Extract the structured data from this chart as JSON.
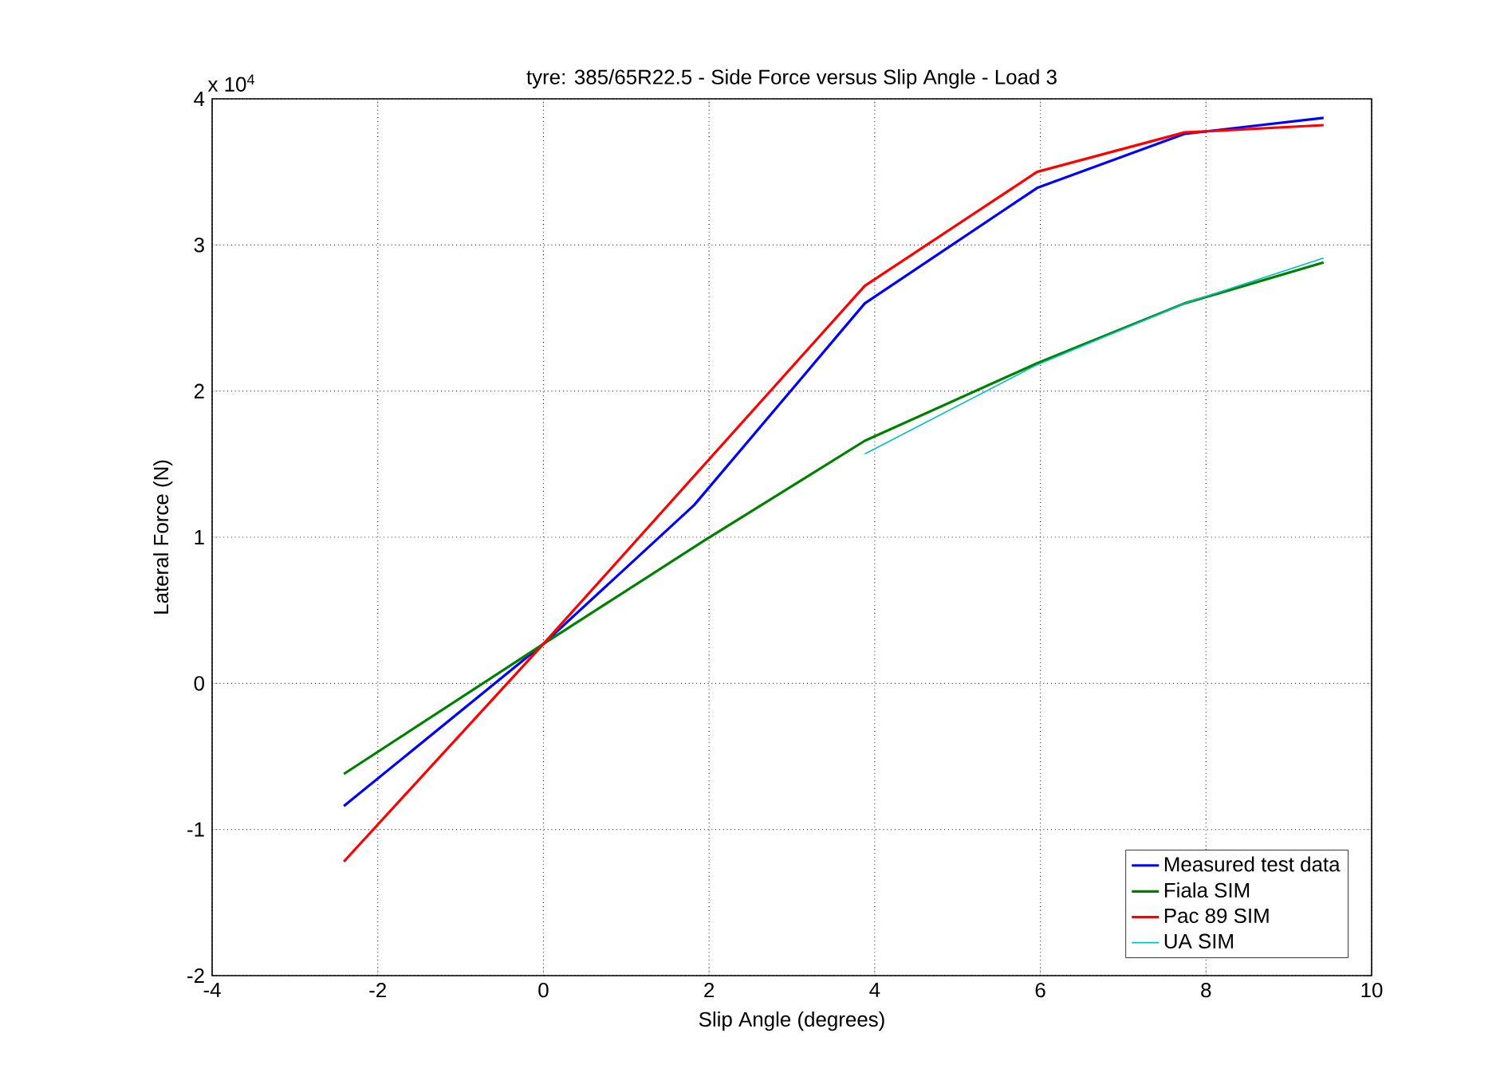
{
  "chart_data": {
    "type": "line",
    "title": "tyre: 385/65R22.5 - Side Force versus Slip Angle - Load 3",
    "xlabel": "Slip Angle (degrees)",
    "ylabel": "Lateral Force (N)",
    "annotations": [
      "x 10$^{4}$"
    ],
    "series": [
      {
        "name": "Measured test data",
        "color": "#0000ff",
        "x": [
          -2.41,
          0,
          1.82,
          3.88,
          5.96,
          7.74,
          9.42
        ],
        "values": [
          -0.84,
          0.27,
          1.22,
          2.6,
          3.39,
          3.76,
          3.87
        ]
      },
      {
        "name": "Fiala SIM",
        "color": "#008000",
        "x": [
          -2.41,
          0,
          1.95,
          3.88,
          5.96,
          7.74,
          9.42
        ],
        "values": [
          -0.62,
          0.27,
          0.98,
          1.66,
          2.19,
          2.6,
          2.88
        ]
      },
      {
        "name": "Pac 89 SIM",
        "color": "#ff0000",
        "x": [
          -2.41,
          0,
          3.88,
          5.96,
          7.74,
          9.42
        ],
        "values": [
          -1.22,
          0.27,
          2.72,
          3.5,
          3.77,
          3.82
        ]
      },
      {
        "name": "UA SIM",
        "color": "#00bfbf",
        "x": [
          3.88,
          5.96,
          7.74,
          9.42
        ],
        "values": [
          1.57,
          2.18,
          2.6,
          2.91
        ]
      }
    ],
    "xlim": [
      -4,
      10
    ],
    "xticks": [
      -4,
      -2,
      0,
      2,
      4,
      6,
      8,
      10
    ],
    "ylim": [
      -2,
      4
    ],
    "yticks": [
      -2,
      -1,
      0,
      1,
      2,
      3,
      4
    ],
    "grid": true,
    "legend": "bottom right",
    "line_style": "solid",
    "marker": "none"
  }
}
